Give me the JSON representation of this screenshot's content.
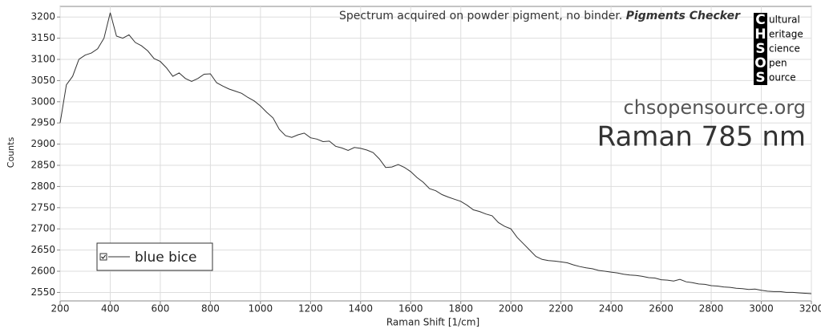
{
  "chart_data": {
    "type": "line",
    "note": "Spectrum acquired on powder pigment, no binder.",
    "note_bold": "Pigments Checker",
    "website": "chsopensource.org",
    "method": "Raman 785 nm",
    "logo_letters": [
      "C",
      "H",
      "S",
      "O",
      "S"
    ],
    "logo_words": [
      "ultural",
      "eritage",
      "cience",
      "pen",
      "ource"
    ],
    "xlabel": "Raman Shift [1/cm]",
    "ylabel": "Counts",
    "xlim": [
      200,
      3200
    ],
    "ylim": [
      2530,
      3225
    ],
    "xticks": [
      200,
      400,
      600,
      800,
      1000,
      1200,
      1400,
      1600,
      1800,
      2000,
      2200,
      2400,
      2600,
      2800,
      3000,
      3200
    ],
    "yticks": [
      2550,
      2600,
      2650,
      2700,
      2750,
      2800,
      2850,
      2900,
      2950,
      3000,
      3050,
      3100,
      3150,
      3200
    ],
    "grid": true,
    "legend": "lower left",
    "x": [
      200,
      225,
      250,
      275,
      300,
      325,
      350,
      375,
      400,
      425,
      450,
      475,
      500,
      525,
      550,
      575,
      600,
      625,
      650,
      675,
      700,
      725,
      750,
      775,
      800,
      825,
      850,
      875,
      900,
      925,
      950,
      975,
      1000,
      1025,
      1050,
      1075,
      1100,
      1125,
      1150,
      1175,
      1200,
      1225,
      1250,
      1275,
      1300,
      1325,
      1350,
      1375,
      1400,
      1425,
      1450,
      1475,
      1500,
      1525,
      1550,
      1575,
      1600,
      1625,
      1650,
      1675,
      1700,
      1725,
      1750,
      1775,
      1800,
      1825,
      1850,
      1875,
      1900,
      1925,
      1950,
      1975,
      2000,
      2025,
      2050,
      2075,
      2100,
      2125,
      2150,
      2175,
      2200,
      2225,
      2250,
      2275,
      2300,
      2325,
      2350,
      2375,
      2400,
      2425,
      2450,
      2475,
      2500,
      2525,
      2550,
      2575,
      2600,
      2625,
      2650,
      2675,
      2700,
      2725,
      2750,
      2775,
      2800,
      2825,
      2850,
      2875,
      2900,
      2925,
      2950,
      2975,
      3000,
      3025,
      3050,
      3075,
      3100,
      3125,
      3150,
      3175,
      3200
    ],
    "series": [
      {
        "name": "blue bice",
        "color": "#333333",
        "values": [
          2950,
          3040,
          3060,
          3100,
          3110,
          3115,
          3125,
          3150,
          3210,
          3155,
          3150,
          3158,
          3140,
          3132,
          3120,
          3102,
          3095,
          3080,
          3060,
          3068,
          3055,
          3048,
          3055,
          3065,
          3066,
          3045,
          3037,
          3030,
          3025,
          3020,
          3010,
          3002,
          2990,
          2975,
          2962,
          2935,
          2920,
          2916,
          2922,
          2926,
          2915,
          2912,
          2906,
          2907,
          2895,
          2891,
          2885,
          2892,
          2890,
          2886,
          2880,
          2865,
          2845,
          2846,
          2852,
          2845,
          2835,
          2821,
          2810,
          2795,
          2790,
          2781,
          2775,
          2770,
          2765,
          2756,
          2745,
          2741,
          2735,
          2731,
          2715,
          2706,
          2700,
          2680,
          2665,
          2650,
          2635,
          2628,
          2625,
          2624,
          2622,
          2620,
          2615,
          2611,
          2608,
          2606,
          2602,
          2600,
          2598,
          2596,
          2593,
          2591,
          2590,
          2588,
          2585,
          2584,
          2580,
          2579,
          2577,
          2581,
          2575,
          2573,
          2570,
          2569,
          2566,
          2565,
          2563,
          2562,
          2560,
          2559,
          2557,
          2558,
          2555,
          2553,
          2552,
          2552,
          2550,
          2550,
          2549,
          2548,
          2547
        ]
      }
    ]
  }
}
